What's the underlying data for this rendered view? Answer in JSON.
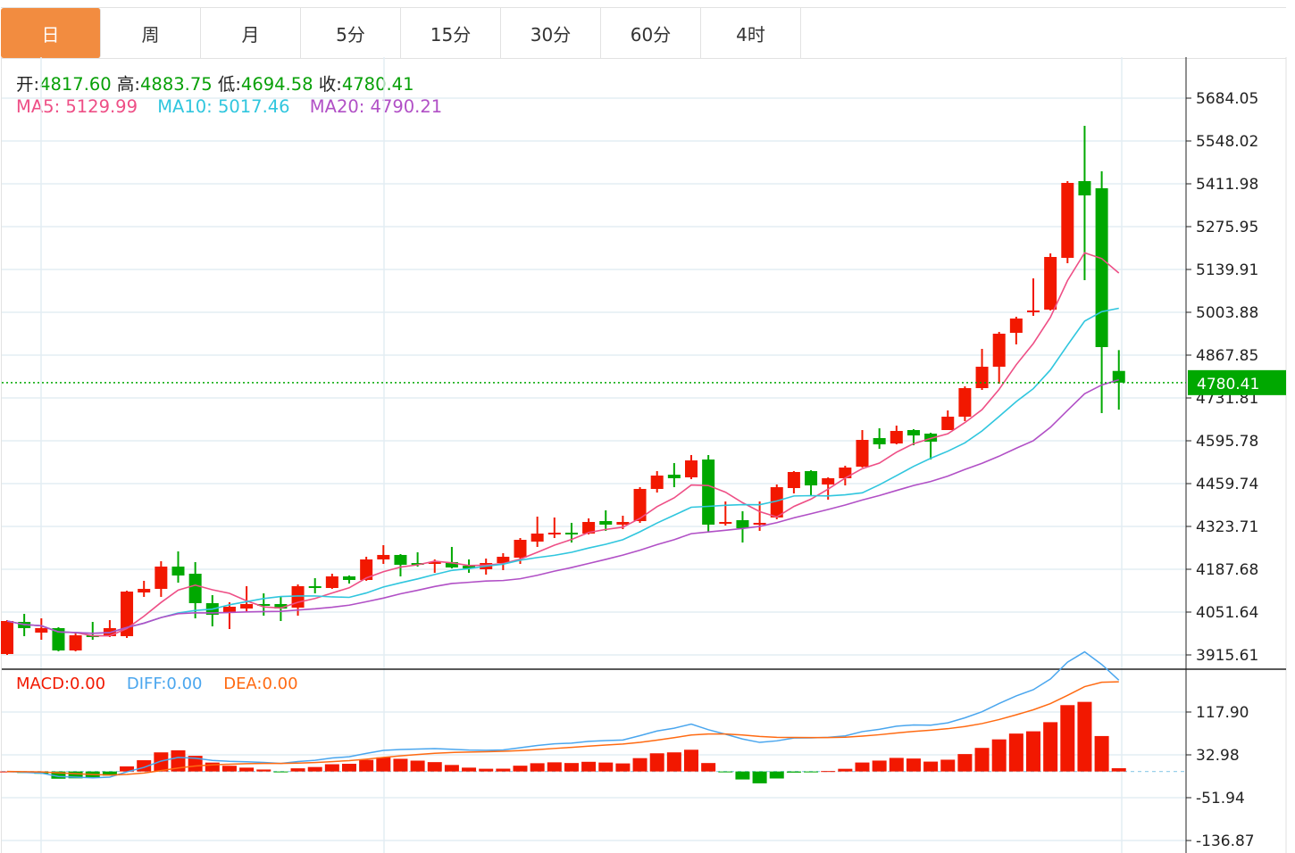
{
  "tabs": [
    {
      "label": "日",
      "active": true
    },
    {
      "label": "周"
    },
    {
      "label": "月"
    },
    {
      "label": "5分"
    },
    {
      "label": "15分"
    },
    {
      "label": "30分"
    },
    {
      "label": "60分"
    },
    {
      "label": "4时"
    }
  ],
  "ohlc": {
    "open_label": "开:",
    "open": "4817.60",
    "high_label": "高:",
    "high": "4883.75",
    "low_label": "低:",
    "low": "4694.58",
    "close_label": "收:",
    "close": "4780.41"
  },
  "ma": {
    "ma5_label": "MA5:",
    "ma5": "5129.99",
    "ma10_label": "MA10:",
    "ma10": "5017.46",
    "ma20_label": "MA20:",
    "ma20": "4790.21"
  },
  "macd_info": {
    "macd_label": "MACD:",
    "macd": "0.00",
    "diff_label": "DIFF:",
    "diff": "0.00",
    "dea_label": "DEA:",
    "dea": "0.00"
  },
  "colors": {
    "up": "#f21800",
    "down": "#00a800",
    "ma5": "#ee4f86",
    "ma10": "#30c6de",
    "ma20": "#b150c6",
    "diff": "#4aa6ee",
    "dea": "#ff6a12",
    "active_tab": "#f28c40",
    "last_price_tag": "#00a800"
  },
  "chart_data": [
    {
      "type": "candlestick",
      "overlays": [
        "MA5",
        "MA10",
        "MA20"
      ],
      "ylim": [
        3915.61,
        5684.05
      ],
      "y_ticks": [
        "5684.05",
        "5548.02",
        "5411.98",
        "5275.95",
        "5139.91",
        "5003.88",
        "4867.85",
        "4731.81",
        "4595.78",
        "4459.74",
        "4323.71",
        "4187.68",
        "4051.64",
        "3915.61"
      ],
      "last_price": "4780.41",
      "grid": true,
      "candles_ohlc": [
        [
          3918.5,
          4026.2,
          3915.6,
          4023.3
        ],
        [
          4020.5,
          4046.0,
          3975.2,
          4000.7
        ],
        [
          3986.5,
          4031.8,
          3963.8,
          4000.7
        ],
        [
          4000.7,
          4003.5,
          3927.0,
          3929.8
        ],
        [
          3929.8,
          3989.3,
          3927.0,
          3978.0
        ],
        [
          3978.0,
          4020.5,
          3963.8,
          3972.3
        ],
        [
          3975.2,
          4026.2,
          3972.3,
          4000.7
        ],
        [
          3975.2,
          4119.7,
          3969.5,
          4116.8
        ],
        [
          4114.0,
          4150.9,
          4099.9,
          4125.4
        ],
        [
          4125.4,
          4213.2,
          4099.9,
          4196.2
        ],
        [
          4196.2,
          4244.4,
          4145.2,
          4167.9
        ],
        [
          4173.5,
          4210.4,
          4031.8,
          4080.0
        ],
        [
          4080.0,
          4105.5,
          4006.3,
          4043.2
        ],
        [
          4048.8,
          4082.8,
          3997.8,
          4068.7
        ],
        [
          4063.0,
          4133.9,
          4054.5,
          4077.2
        ],
        [
          4077.2,
          4111.2,
          4040.3,
          4071.5
        ],
        [
          4077.2,
          4102.7,
          4023.3,
          4063.0
        ],
        [
          4065.8,
          4139.5,
          4040.3,
          4133.9
        ],
        [
          4133.9,
          4159.4,
          4111.2,
          4128.2
        ],
        [
          4128.2,
          4173.5,
          4125.4,
          4165.0
        ],
        [
          4165.0,
          4167.9,
          4142.4,
          4153.7
        ],
        [
          4153.7,
          4227.4,
          4150.9,
          4218.9
        ],
        [
          4218.9,
          4264.2,
          4204.7,
          4233.1
        ],
        [
          4233.1,
          4235.9,
          4165.0,
          4201.9
        ],
        [
          4207.5,
          4241.6,
          4196.2,
          4201.9
        ],
        [
          4204.7,
          4218.9,
          4176.4,
          4210.4
        ],
        [
          4210.4,
          4258.6,
          4190.5,
          4193.4
        ],
        [
          4199.0,
          4218.9,
          4176.4,
          4190.5
        ],
        [
          4187.7,
          4221.7,
          4170.7,
          4207.5
        ],
        [
          4207.5,
          4238.7,
          4184.9,
          4227.4
        ],
        [
          4224.5,
          4286.9,
          4204.7,
          4281.2
        ],
        [
          4275.6,
          4354.9,
          4258.6,
          4301.1
        ],
        [
          4298.2,
          4352.1,
          4286.9,
          4303.9
        ],
        [
          4303.9,
          4335.1,
          4272.7,
          4298.2
        ],
        [
          4301.1,
          4349.2,
          4298.2,
          4337.9
        ],
        [
          4340.7,
          4374.8,
          4309.6,
          4329.4
        ],
        [
          4329.4,
          4357.7,
          4315.2,
          4337.9
        ],
        [
          4340.7,
          4448.4,
          4335.1,
          4442.8
        ],
        [
          4442.8,
          4499.4,
          4431.4,
          4485.3
        ],
        [
          4488.1,
          4525.0,
          4448.4,
          4476.8
        ],
        [
          4479.6,
          4550.5,
          4473.9,
          4533.5
        ],
        [
          4536.3,
          4550.5,
          4303.9,
          4329.4
        ],
        [
          4332.2,
          4403.1,
          4326.6,
          4337.9
        ],
        [
          4343.6,
          4371.9,
          4272.7,
          4318.1
        ],
        [
          4329.4,
          4403.1,
          4309.6,
          4335.1
        ],
        [
          4352.1,
          4456.9,
          4346.4,
          4448.4
        ],
        [
          4445.6,
          4499.4,
          4428.6,
          4496.6
        ],
        [
          4499.4,
          4502.3,
          4422.9,
          4454.1
        ],
        [
          4456.9,
          4479.6,
          4408.8,
          4476.8
        ],
        [
          4476.8,
          4516.5,
          4454.1,
          4510.8
        ],
        [
          4513.6,
          4629.8,
          4510.8,
          4598.6
        ],
        [
          4604.3,
          4635.5,
          4570.3,
          4584.5
        ],
        [
          4587.3,
          4644.0,
          4584.5,
          4627.0
        ],
        [
          4629.8,
          4632.6,
          4581.6,
          4612.8
        ],
        [
          4618.5,
          4621.3,
          4536.3,
          4593.0
        ],
        [
          4629.8,
          4692.2,
          4629.8,
          4672.3
        ],
        [
          4672.3,
          4768.7,
          4658.2,
          4763.0
        ],
        [
          4763.0,
          4887.7,
          4757.3,
          4831.0
        ],
        [
          4831.0,
          4941.6,
          4777.2,
          4935.9
        ],
        [
          4938.7,
          4989.7,
          4901.9,
          4984.1
        ],
        [
          5003.9,
          5111.6,
          4992.6,
          5009.6
        ],
        [
          5012.4,
          5190.9,
          5009.6,
          5179.6
        ],
        [
          5176.8,
          5420.5,
          5159.8,
          5414.8
        ],
        [
          5420.5,
          5596.2,
          5105.9,
          5375.2
        ],
        [
          5397.8,
          5451.7,
          4683.7,
          4893.4
        ],
        [
          4817.6,
          4883.75,
          4694.58,
          4780.41
        ]
      ]
    },
    {
      "type": "bar+line",
      "indicator": "MACD",
      "series": [
        "MACD",
        "DIFF",
        "DEA"
      ],
      "y_ticks": [
        "117.90",
        "32.98",
        "-51.94",
        "-136.87"
      ],
      "ylim": [
        -136.87,
        117.9
      ]
    }
  ]
}
